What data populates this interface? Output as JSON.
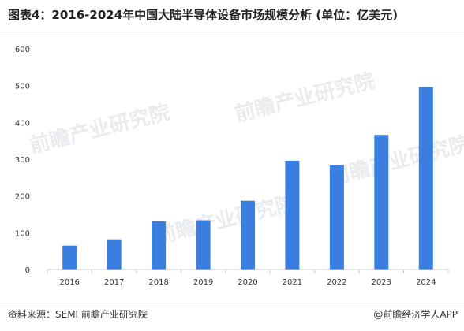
{
  "title": "图表4：2016-2024年中国大陆半导体设备市场规模分析 (单位：亿美元)",
  "source": "资料来源：SEMI 前瞻产业研究院",
  "brand": "@前瞻经济学人APP",
  "watermark": "前瞻产业研究院",
  "colors": {
    "bar": "#3a7fe0",
    "axis": "#c8c8c8",
    "grid": "#e6e6e6",
    "watermark": "#e9ecef"
  },
  "chart_data": {
    "type": "bar",
    "title": "图表4：2016-2024年中国大陆半导体设备市场规模分析 (单位：亿美元)",
    "categories": [
      "2016",
      "2017",
      "2018",
      "2019",
      "2020",
      "2021",
      "2022",
      "2023",
      "2024"
    ],
    "values": [
      65,
      82,
      131,
      134,
      187,
      296,
      283,
      366,
      496
    ],
    "ylim": [
      0,
      600
    ],
    "yticks": [
      0,
      100,
      200,
      300,
      400,
      500,
      600
    ],
    "xlabel": "",
    "ylabel": "",
    "grid": false,
    "legend": "none"
  }
}
